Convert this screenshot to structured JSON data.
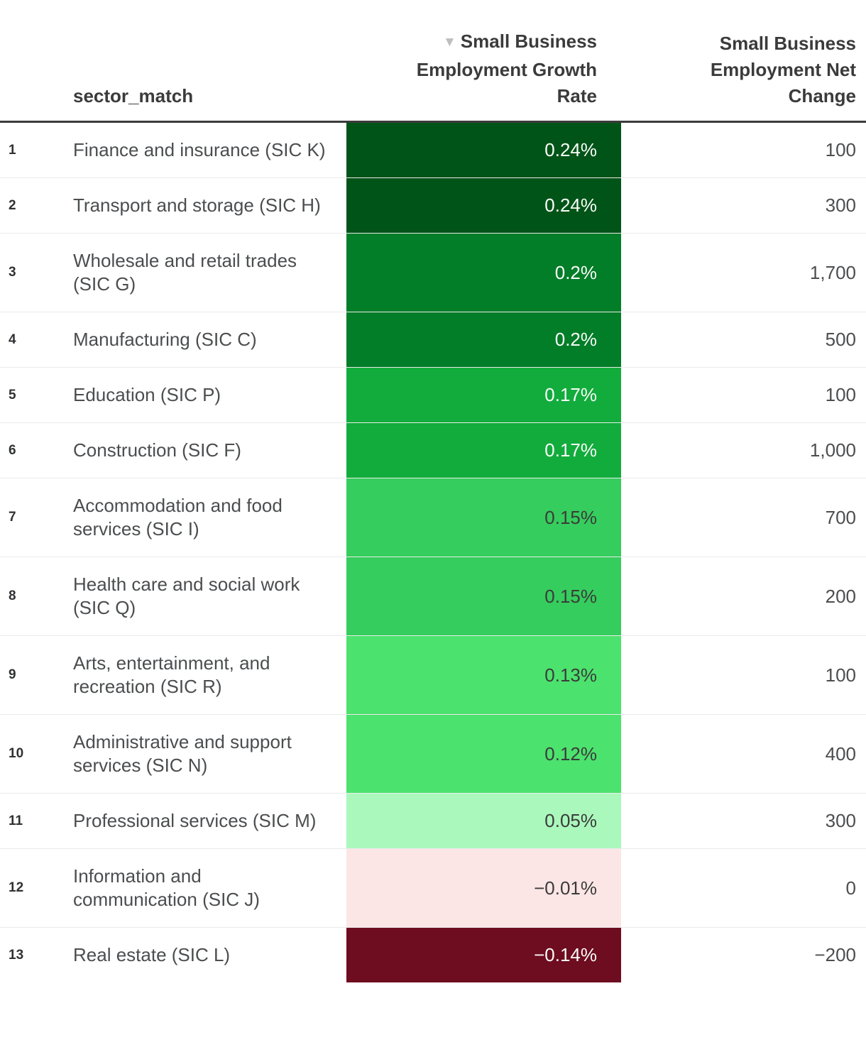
{
  "chart_data": {
    "type": "table",
    "title": "",
    "columns": [
      "sector_match",
      "Small Business Employment Growth Rate",
      "Small Business Employment Net Change"
    ],
    "sort": {
      "column": "Small Business Employment Growth Rate",
      "direction": "descending"
    },
    "rows": [
      {
        "rank": "1",
        "sector": "Finance and insurance (SIC K)",
        "growth": "0.24%",
        "growth_value": 0.24,
        "net_change": "100",
        "net_change_value": 100,
        "cell_bg": "#015418",
        "cell_fg": "#fafdfa"
      },
      {
        "rank": "2",
        "sector": "Transport and storage (SIC H)",
        "growth": "0.24%",
        "growth_value": 0.24,
        "net_change": "300",
        "net_change_value": 300,
        "cell_bg": "#015418",
        "cell_fg": "#fafdfa"
      },
      {
        "rank": "3",
        "sector": "Wholesale and retail trades (SIC G)",
        "growth": "0.2%",
        "growth_value": 0.2,
        "net_change": "1,700",
        "net_change_value": 1700,
        "cell_bg": "#027d28",
        "cell_fg": "#fafdfa"
      },
      {
        "rank": "4",
        "sector": "Manufacturing (SIC C)",
        "growth": "0.2%",
        "growth_value": 0.2,
        "net_change": "500",
        "net_change_value": 500,
        "cell_bg": "#027d28",
        "cell_fg": "#fafdfa"
      },
      {
        "rank": "5",
        "sector": "Education (SIC P)",
        "growth": "0.17%",
        "growth_value": 0.17,
        "net_change": "100",
        "net_change_value": 100,
        "cell_bg": "#12ac3c",
        "cell_fg": "#fafdfa"
      },
      {
        "rank": "6",
        "sector": "Construction (SIC F)",
        "growth": "0.17%",
        "growth_value": 0.17,
        "net_change": "1,000",
        "net_change_value": 1000,
        "cell_bg": "#12ac3c",
        "cell_fg": "#fafdfa"
      },
      {
        "rank": "7",
        "sector": "Accommodation and food services (SIC I)",
        "growth": "0.15%",
        "growth_value": 0.15,
        "net_change": "700",
        "net_change_value": 700,
        "cell_bg": "#35cd5d",
        "cell_fg": "#3a3c3a"
      },
      {
        "rank": "8",
        "sector": "Health care and social work (SIC Q)",
        "growth": "0.15%",
        "growth_value": 0.15,
        "net_change": "200",
        "net_change_value": 200,
        "cell_bg": "#35cd5d",
        "cell_fg": "#3a3c3a"
      },
      {
        "rank": "9",
        "sector": "Arts, entertainment, and recreation (SIC R)",
        "growth": "0.13%",
        "growth_value": 0.13,
        "net_change": "100",
        "net_change_value": 100,
        "cell_bg": "#4ce26e",
        "cell_fg": "#3a3c3a"
      },
      {
        "rank": "10",
        "sector": "Administrative and support services (SIC N)",
        "growth": "0.12%",
        "growth_value": 0.12,
        "net_change": "400",
        "net_change_value": 400,
        "cell_bg": "#4ce26e",
        "cell_fg": "#3a3c3a"
      },
      {
        "rank": "11",
        "sector": "Professional services (SIC M)",
        "growth": "0.05%",
        "growth_value": 0.05,
        "net_change": "300",
        "net_change_value": 300,
        "cell_bg": "#abf8bd",
        "cell_fg": "#3a3c3a"
      },
      {
        "rank": "12",
        "sector": "Information and communication (SIC J)",
        "growth": "−0.01%",
        "growth_value": -0.01,
        "net_change": "0",
        "net_change_value": 0,
        "cell_bg": "#fce5e5",
        "cell_fg": "#3a3c3a"
      },
      {
        "rank": "13",
        "sector": "Real estate (SIC L)",
        "growth": "−0.14%",
        "growth_value": -0.14,
        "net_change": "−200",
        "net_change_value": -200,
        "cell_bg": "#6e0c20",
        "cell_fg": "#fafdfa"
      }
    ]
  },
  "header": {
    "sector_label": "sector_match",
    "growth_label": "Small Business Employment Growth Rate",
    "net_change_label": "Small Business Employment Net Change",
    "sort_icon": "▼"
  },
  "colors": {
    "header_text": "#3b3b3c",
    "sort_icon": "#bdbebe",
    "header_rule": "#3b3b3b",
    "row_divider": "#e9e9e9",
    "body_text": "#4b4d4f",
    "rank_text": "#2f3133",
    "background": "#ffffff"
  }
}
